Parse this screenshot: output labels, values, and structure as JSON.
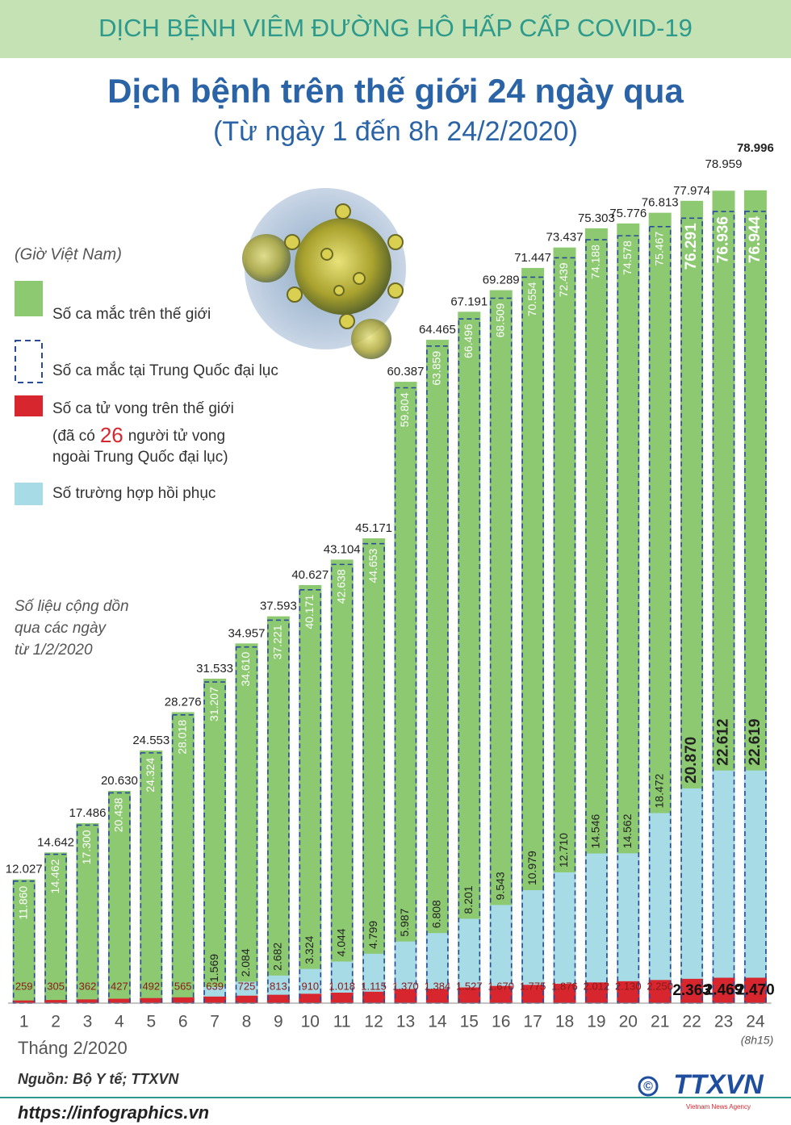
{
  "header": "DỊCH BỆNH VIÊM ĐƯỜNG HÔ HẤP CẤP COVID-19",
  "chart_data": {
    "type": "bar",
    "title": "Dịch bệnh trên thế giới 24 ngày qua",
    "subtitle": "(Từ ngày 1 đến 8h 24/2/2020)",
    "time_note": "(Giờ Việt Nam)",
    "annotation": [
      "Số liệu cộng dồn",
      "qua các ngày",
      "từ 1/2/2020"
    ],
    "x_label": "Tháng 2/2020",
    "last_category_note": "(8h15)",
    "categories": [
      "1",
      "2",
      "3",
      "4",
      "5",
      "6",
      "7",
      "8",
      "9",
      "10",
      "11",
      "12",
      "13",
      "14",
      "15",
      "16",
      "17",
      "18",
      "19",
      "20",
      "21",
      "22",
      "23",
      "24"
    ],
    "ylim": [
      0,
      80000
    ],
    "series": [
      {
        "name": "Số ca mắc trên thế giới",
        "color": "#8dc971",
        "values": [
          12027,
          14642,
          17486,
          20630,
          24553,
          28276,
          31533,
          34957,
          37593,
          40627,
          43104,
          45171,
          60387,
          64465,
          67191,
          69289,
          71447,
          73437,
          75303,
          75776,
          76813,
          77974,
          78959,
          78996
        ],
        "value_labels": [
          "12.027",
          "14.642",
          "17.486",
          "20.630",
          "24.553",
          "28.276",
          "31.533",
          "34.957",
          "37.593",
          "40.627",
          "43.104",
          "45.171",
          "60.387",
          "64.465",
          "67.191",
          "69.289",
          "71.447",
          "73.437",
          "75.303",
          "75.776",
          "76.813",
          "77.974",
          "78.959",
          "78.996"
        ]
      },
      {
        "name": "Số ca mắc tại Trung Quốc đại lục",
        "color": "#2a4a9a",
        "values": [
          11860,
          14462,
          17300,
          20438,
          24324,
          28018,
          31207,
          34610,
          37221,
          40171,
          42638,
          44653,
          59804,
          63859,
          66496,
          68509,
          70554,
          72439,
          74188,
          74578,
          75467,
          76291,
          76936,
          76944
        ],
        "value_labels": [
          "11.860",
          "14.462",
          "17.300",
          "20.438",
          "24.324",
          "28.018",
          "31.207",
          "34.610",
          "37.221",
          "40.171",
          "42.638",
          "44.653",
          "59.804",
          "63.859",
          "66.496",
          "68.509",
          "70.554",
          "72.439",
          "74.188",
          "74.578",
          "75.467",
          "76.291",
          "76.936",
          "76.944"
        ]
      },
      {
        "name": "Số ca tử vong trên thế giới",
        "color": "#d7262e",
        "values": [
          259,
          305,
          362,
          427,
          492,
          565,
          639,
          725,
          813,
          910,
          1018,
          1115,
          1370,
          1384,
          1527,
          1670,
          1775,
          1876,
          2012,
          2130,
          2250,
          2363,
          2469,
          2470
        ],
        "value_labels": [
          "259",
          "305",
          "362",
          "427",
          "492",
          "565",
          "639",
          "725",
          "813",
          "910",
          "1.018",
          "1.115",
          "1.370",
          "1.384",
          "1.527",
          "1.670",
          "1.775",
          "1.876",
          "2.012",
          "2.130",
          "2.250",
          "2.363",
          "2.469",
          "2.470"
        ]
      },
      {
        "name": "Số trường hợp hồi phục",
        "color": "#a7dbe6",
        "values": [
          null,
          null,
          null,
          null,
          null,
          null,
          1569,
          2084,
          2682,
          3324,
          4044,
          4799,
          5987,
          6808,
          8201,
          9543,
          10979,
          12710,
          14546,
          14562,
          18472,
          20870,
          22612,
          22619
        ],
        "value_labels": [
          null,
          null,
          null,
          null,
          null,
          null,
          "1.569",
          "2.084",
          "2.682",
          "3.324",
          "4.044",
          "4.799",
          "5.987",
          "6.808",
          "8.201",
          "9.543",
          "10.979",
          "12.710",
          "14.546",
          "14.562",
          "18.472",
          "20.870",
          "22.612",
          "22.619"
        ]
      }
    ],
    "death_note": {
      "prefix": "(đã có",
      "number": 26,
      "suffix": "người tử vong",
      "line2": "ngoài Trung Quốc đại lục)"
    }
  },
  "footer": {
    "source": "Nguồn: Bộ Y tế; TTXVN",
    "url": "https://infographics.vn",
    "logo": "TTXVN",
    "logo_sub": "Vietnam News Agency",
    "copyright": "©"
  }
}
